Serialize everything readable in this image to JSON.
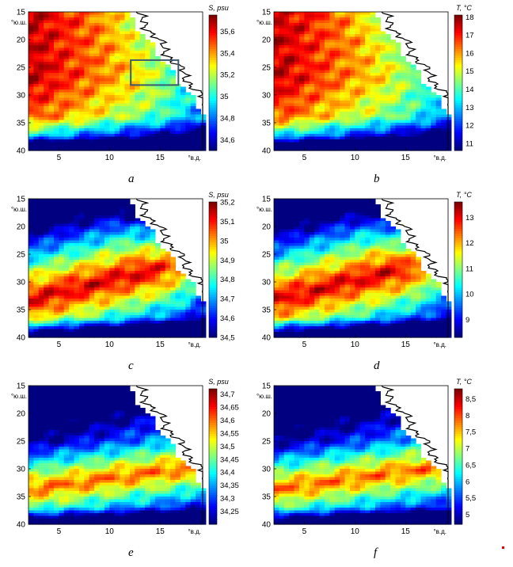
{
  "figure": {
    "panels": [
      {
        "label": "a",
        "variable": "S",
        "colorbar_title": "S, psu",
        "cbar_ticks": [
          "35,6",
          "35,4",
          "35,2",
          "35",
          "34,8",
          "34,6"
        ],
        "cbar_range": [
          34.5,
          35.75
        ],
        "pattern": "warm_north",
        "box": true
      },
      {
        "label": "b",
        "variable": "T",
        "colorbar_title": "T, °C",
        "cbar_ticks": [
          "18",
          "17",
          "16",
          "15",
          "14",
          "13",
          "12",
          "11"
        ],
        "cbar_range": [
          10.6,
          18.1
        ],
        "pattern": "warm_north",
        "box": false
      },
      {
        "label": "c",
        "variable": "S",
        "colorbar_title": "S, psu",
        "cbar_ticks": [
          "35,2",
          "35,1",
          "35",
          "34,9",
          "34,8",
          "34,7",
          "34,6",
          "34,5"
        ],
        "cbar_range": [
          34.5,
          35.2
        ],
        "pattern": "band_mid",
        "box": false
      },
      {
        "label": "d",
        "variable": "T",
        "colorbar_title": "T, °C",
        "cbar_ticks": [
          "13",
          "12",
          "11",
          "10",
          "9"
        ],
        "cbar_range": [
          8.3,
          13.6
        ],
        "pattern": "band_mid",
        "box": false
      },
      {
        "label": "e",
        "variable": "S",
        "colorbar_title": "S, psu",
        "cbar_ticks": [
          "34,7",
          "34,65",
          "34,6",
          "34,55",
          "34,5",
          "34,45",
          "34,4",
          "34,35",
          "34,3",
          "34,25"
        ],
        "cbar_range": [
          34.2,
          34.72
        ],
        "pattern": "band_south",
        "box": false
      },
      {
        "label": "f",
        "variable": "T",
        "colorbar_title": "T, °C",
        "cbar_ticks": [
          "8,5",
          "8",
          "7,5",
          "7",
          "6,5",
          "6",
          "5,5",
          "5"
        ],
        "cbar_range": [
          4.7,
          8.8
        ],
        "pattern": "band_south",
        "box": false
      }
    ],
    "axes": {
      "y_ticks": [
        "15",
        "20",
        "25",
        "30",
        "35",
        "40"
      ],
      "y_unit": "°ю.ш.",
      "x_ticks": [
        "5",
        "10",
        "15"
      ],
      "x_unit": "°в.д."
    }
  },
  "chart_data": [
    {
      "type": "heatmap",
      "title": "a",
      "colorbar_label": "S, psu",
      "x_ticks": [
        5,
        10,
        15
      ],
      "x_unit": "°в.д.",
      "y_ticks": [
        15,
        20,
        25,
        30,
        35,
        40
      ],
      "y_unit": "°ю.ш.",
      "xlim": [
        2,
        19
      ],
      "ylim": [
        40,
        15
      ],
      "color_range": [
        34.5,
        35.75
      ],
      "annotation": "rectangle",
      "extremes": {
        "max_region": "north-west",
        "min_region": "south"
      }
    },
    {
      "type": "heatmap",
      "title": "b",
      "colorbar_label": "T, °C",
      "x_ticks": [
        5,
        10,
        15
      ],
      "x_unit": "°в.д.",
      "y_ticks": [
        15,
        20,
        25,
        30,
        35,
        40
      ],
      "y_unit": "°ю.ш.",
      "xlim": [
        2,
        19
      ],
      "ylim": [
        40,
        15
      ],
      "color_range": [
        10.6,
        18.1
      ]
    },
    {
      "type": "heatmap",
      "title": "c",
      "colorbar_label": "S, psu",
      "x_ticks": [
        5,
        10,
        15
      ],
      "x_unit": "°в.д.",
      "y_ticks": [
        15,
        20,
        25,
        30,
        35,
        40
      ],
      "y_unit": "°ю.ш.",
      "xlim": [
        2,
        19
      ],
      "ylim": [
        40,
        15
      ],
      "color_range": [
        34.5,
        35.2
      ]
    },
    {
      "type": "heatmap",
      "title": "d",
      "colorbar_label": "T, °C",
      "x_ticks": [
        5,
        10,
        15
      ],
      "x_unit": "°в.д.",
      "y_ticks": [
        15,
        20,
        25,
        30,
        35,
        40
      ],
      "y_unit": "°ю.ш.",
      "xlim": [
        2,
        19
      ],
      "ylim": [
        40,
        15
      ],
      "color_range": [
        8.3,
        13.6
      ]
    },
    {
      "type": "heatmap",
      "title": "e",
      "colorbar_label": "S, psu",
      "x_ticks": [
        5,
        10,
        15
      ],
      "x_unit": "°в.д.",
      "y_ticks": [
        15,
        20,
        25,
        30,
        35,
        40
      ],
      "y_unit": "°ю.ш.",
      "xlim": [
        2,
        19
      ],
      "ylim": [
        40,
        15
      ],
      "color_range": [
        34.2,
        34.72
      ]
    },
    {
      "type": "heatmap",
      "title": "f",
      "colorbar_label": "T, °C",
      "x_ticks": [
        5,
        10,
        15
      ],
      "x_unit": "°в.д.",
      "y_ticks": [
        15,
        20,
        25,
        30,
        35,
        40
      ],
      "y_unit": "°ю.ш.",
      "xlim": [
        2,
        19
      ],
      "ylim": [
        40,
        15
      ],
      "color_range": [
        4.7,
        8.8
      ]
    }
  ]
}
